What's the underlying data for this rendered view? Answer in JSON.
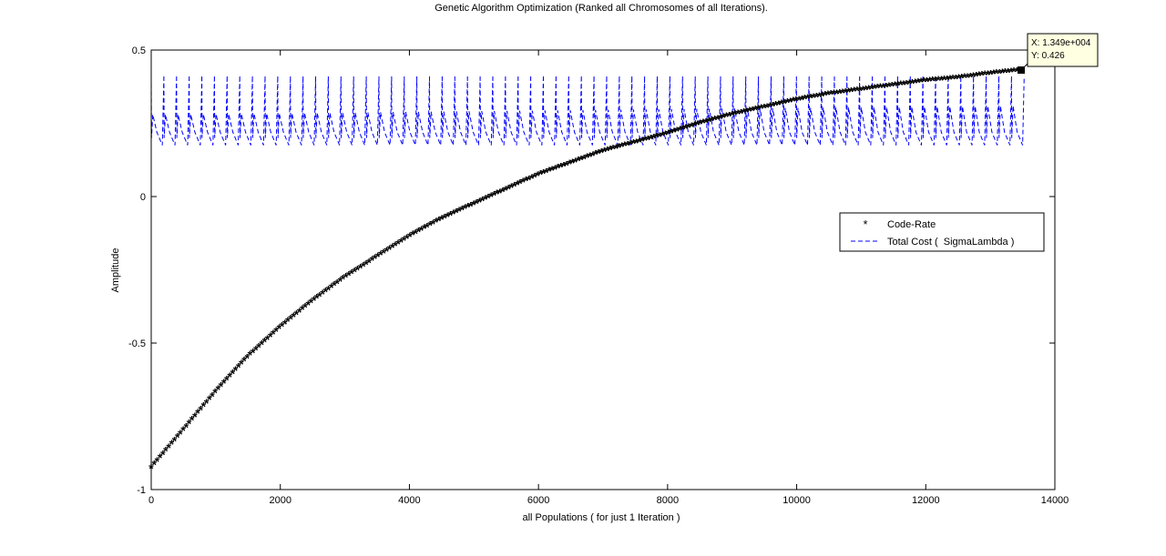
{
  "chart_data": {
    "type": "scatter",
    "title": "Genetic Algorithm Optimization (Ranked all Chromosomes of all Iterations).",
    "xlabel": "all Populations ( for just 1 Iteration )",
    "ylabel": "Amplitude",
    "xlim": [
      0,
      14000
    ],
    "ylim": [
      -1,
      0.5
    ],
    "xticks": [
      0,
      2000,
      4000,
      6000,
      8000,
      10000,
      12000,
      14000
    ],
    "xtick_labels": [
      "0",
      "2000",
      "4000",
      "6000",
      "8000",
      "10000",
      "12000",
      "14000"
    ],
    "yticks": [
      -1,
      -0.5,
      0,
      0.5
    ],
    "ytick_labels": [
      "-1",
      "-0.5",
      "0",
      "0.5"
    ],
    "grid": false,
    "legend_position": "right",
    "series": [
      {
        "name": "Code-Rate",
        "style": "markers",
        "marker": "*",
        "color": "#ff0000",
        "x": [
          0,
          500,
          1000,
          1500,
          2000,
          2500,
          3000,
          3500,
          4000,
          4500,
          5000,
          5500,
          6000,
          6500,
          7000,
          7500,
          8000,
          8500,
          9000,
          9500,
          10000,
          10500,
          11000,
          11500,
          12000,
          12500,
          13000,
          13490
        ],
        "y": [
          -0.93,
          -0.8,
          -0.67,
          -0.55,
          -0.45,
          -0.36,
          -0.28,
          -0.21,
          -0.14,
          -0.08,
          -0.03,
          0.02,
          0.07,
          0.11,
          0.15,
          0.18,
          0.21,
          0.245,
          0.275,
          0.3,
          0.325,
          0.345,
          0.36,
          0.375,
          0.39,
          0.4,
          0.415,
          0.426
        ]
      },
      {
        "name": "Total Cost (  SigmaLambda )",
        "style": "dashed-line",
        "color": "#0000ff",
        "cycle_count": 69,
        "cycle_length": 196,
        "min": 0.175,
        "max": 0.41,
        "baseline": 0.2,
        "peak_early": 0.28,
        "peak_late": 0.31
      }
    ],
    "annotations": [
      {
        "type": "datatip",
        "x": 13490,
        "y": 0.426,
        "line1": "X: 1.349e+004",
        "line2": "Y: 0.426"
      }
    ]
  },
  "colors": {
    "code_rate": "#ff0000",
    "total_cost": "#0000ff",
    "datatip_bg": "#ffffe1"
  }
}
